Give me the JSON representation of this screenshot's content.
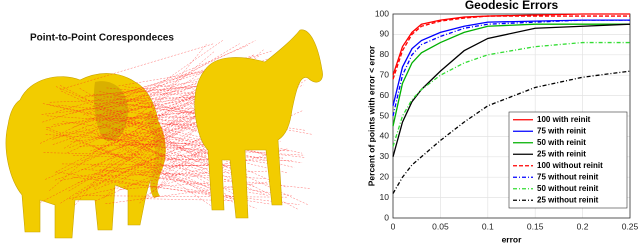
{
  "figure": {
    "left_title": "Point-to-Point Corespondeces"
  },
  "chart_data": {
    "type": "line",
    "title": "Geodesic Errors",
    "xlabel": "error",
    "ylabel": "Percent of points with error < error",
    "x": [
      0,
      0.01,
      0.02,
      0.03,
      0.05,
      0.075,
      0.1,
      0.15,
      0.2,
      0.25
    ],
    "xlim": [
      0,
      0.25
    ],
    "xticks": [
      0,
      0.05,
      0.1,
      0.15,
      0.2,
      0.25
    ],
    "ylim": [
      0,
      100
    ],
    "yticks": [
      0,
      10,
      20,
      30,
      40,
      50,
      60,
      70,
      80,
      90,
      100
    ],
    "grid": true,
    "legend": "lower right",
    "series": [
      {
        "name": "100 with reinit",
        "color": "#ff0000",
        "linestyle": "solid",
        "values": [
          70,
          84,
          91,
          95,
          97,
          98.5,
          99,
          99.5,
          100,
          100
        ]
      },
      {
        "name": "75 with reinit",
        "color": "#0000ff",
        "linestyle": "solid",
        "values": [
          55,
          74,
          83,
          87,
          91,
          94,
          96,
          96.5,
          97,
          97
        ]
      },
      {
        "name": "50 with reinit",
        "color": "#00b000",
        "linestyle": "solid",
        "values": [
          45,
          66,
          76,
          81,
          86,
          91,
          94,
          95,
          95,
          95
        ]
      },
      {
        "name": "25 with reinit",
        "color": "#000000",
        "linestyle": "solid",
        "values": [
          30,
          47,
          57,
          63,
          72,
          82,
          88,
          93,
          94,
          95
        ]
      },
      {
        "name": "100 without reinit",
        "color": "#ff0000",
        "linestyle": "dashed",
        "values": [
          68,
          82,
          90,
          94,
          96.5,
          98,
          99,
          99,
          99,
          99
        ]
      },
      {
        "name": "75 without reinit",
        "color": "#0000ff",
        "linestyle": "dashdot",
        "values": [
          50,
          70,
          80,
          85,
          89,
          93,
          95,
          96,
          97,
          97
        ]
      },
      {
        "name": "50 without reinit",
        "color": "#33dd33",
        "linestyle": "dashdot",
        "values": [
          35,
          50,
          58,
          63,
          70,
          76,
          80,
          84,
          86,
          86
        ]
      },
      {
        "name": "25 without reinit",
        "color": "#000000",
        "linestyle": "dashdot",
        "values": [
          12,
          20,
          26,
          30,
          38,
          47,
          55,
          64,
          69,
          72
        ]
      }
    ]
  }
}
